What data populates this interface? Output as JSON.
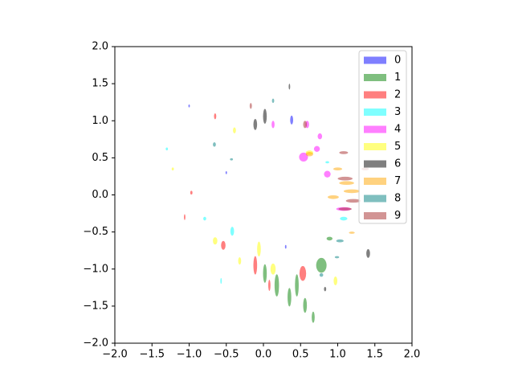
{
  "chart_data": {
    "type": "ellipse-scatter",
    "xlim": [
      -2,
      2
    ],
    "ylim": [
      -2,
      2
    ],
    "xticks": [
      {
        "value": -2,
        "label": "−2.0"
      },
      {
        "value": -1.5,
        "label": "−1.5"
      },
      {
        "value": -1,
        "label": "−1.0"
      },
      {
        "value": -0.5,
        "label": "−0.5"
      },
      {
        "value": 0,
        "label": "0.0"
      },
      {
        "value": 0.5,
        "label": "0.5"
      },
      {
        "value": 1,
        "label": "1.0"
      },
      {
        "value": 1.5,
        "label": "1.5"
      },
      {
        "value": 2,
        "label": "2.0"
      }
    ],
    "yticks": [
      {
        "value": -2,
        "label": "−2.0"
      },
      {
        "value": -1.5,
        "label": "−1.5"
      },
      {
        "value": -1,
        "label": "−1.0"
      },
      {
        "value": -0.5,
        "label": "−0.5"
      },
      {
        "value": 0,
        "label": "0.0"
      },
      {
        "value": 0.5,
        "label": "0.5"
      },
      {
        "value": 1,
        "label": "1.0"
      },
      {
        "value": 1.5,
        "label": "1.5"
      },
      {
        "value": 2,
        "label": "2.0"
      }
    ],
    "alpha": 0.5,
    "legend": "upper right",
    "series": [
      {
        "name": "0",
        "color": "blue",
        "x": [
          0.38,
          -0.5,
          -1.0,
          0.3
        ],
        "y": [
          1.01,
          0.3,
          1.2,
          -0.7
        ],
        "width": [
          0.04,
          0.02,
          0.02,
          0.02
        ],
        "height": [
          0.12,
          0.04,
          0.04,
          0.05
        ]
      },
      {
        "name": "1",
        "color": "green",
        "x": [
          0.18,
          0.35,
          0.56,
          0.78,
          0.89,
          0.02,
          0.45,
          0.67
        ],
        "y": [
          -1.22,
          -1.38,
          -1.49,
          -0.95,
          -0.59,
          -1.06,
          -1.22,
          -1.65
        ],
        "width": [
          0.06,
          0.05,
          0.05,
          0.14,
          0.08,
          0.05,
          0.05,
          0.04
        ],
        "height": [
          0.3,
          0.25,
          0.2,
          0.2,
          0.05,
          0.25,
          0.3,
          0.15
        ]
      },
      {
        "name": "2",
        "color": "red",
        "x": [
          0.53,
          -0.11,
          -0.54,
          -0.65,
          -0.97,
          0.08,
          -1.06
        ],
        "y": [
          -1.06,
          -0.95,
          -0.68,
          1.06,
          0.03,
          -1.22,
          -0.3
        ],
        "width": [
          0.09,
          0.05,
          0.06,
          0.03,
          0.03,
          0.03,
          0.02
        ],
        "height": [
          0.2,
          0.25,
          0.12,
          0.08,
          0.05,
          0.15,
          0.08
        ]
      },
      {
        "name": "3",
        "color": "cyan",
        "x": [
          -0.42,
          1.08,
          -0.79,
          -1.3,
          -0.57,
          0.86
        ],
        "y": [
          -0.49,
          -0.32,
          -0.32,
          0.62,
          -1.16,
          0.44
        ],
        "width": [
          0.05,
          0.1,
          0.04,
          0.03,
          0.02,
          0.05
        ],
        "height": [
          0.12,
          0.05,
          0.05,
          0.04,
          0.08,
          0.03
        ]
      },
      {
        "name": "4",
        "color": "magenta",
        "x": [
          0.54,
          0.72,
          0.86,
          1.08,
          0.59,
          0.13,
          0.76
        ],
        "y": [
          0.51,
          0.62,
          0.28,
          -0.19,
          0.95,
          0.95,
          0.79
        ],
        "width": [
          0.12,
          0.08,
          0.09,
          0.2,
          0.05,
          0.04,
          0.06
        ],
        "height": [
          0.12,
          0.08,
          0.09,
          0.05,
          0.1,
          0.1,
          0.08
        ]
      },
      {
        "name": "5",
        "color": "yellow",
        "x": [
          0.13,
          -0.65,
          -0.32,
          0.97,
          0.62,
          -0.39,
          -0.06,
          -1.22
        ],
        "y": [
          -1.0,
          -0.62,
          -0.89,
          -1.16,
          0.57,
          0.87,
          -0.73,
          0.35
        ],
        "width": [
          0.07,
          0.06,
          0.04,
          0.05,
          0.1,
          0.04,
          0.05,
          0.03
        ],
        "height": [
          0.15,
          0.1,
          0.1,
          0.12,
          0.06,
          0.08,
          0.2,
          0.04
        ]
      },
      {
        "name": "6",
        "color": "black",
        "x": [
          -0.11,
          0.02,
          1.41,
          0.35,
          0.83
        ],
        "y": [
          0.95,
          1.06,
          -0.79,
          1.46,
          -1.27
        ],
        "width": [
          0.05,
          0.05,
          0.05,
          0.02,
          0.03
        ],
        "height": [
          0.15,
          0.2,
          0.12,
          0.08,
          0.06
        ]
      },
      {
        "name": "7",
        "color": "orange",
        "x": [
          0.94,
          1.12,
          1.0,
          1.19,
          0.62,
          1.19
        ],
        "y": [
          -0.03,
          0.16,
          0.35,
          0.05,
          0.55,
          -0.51
        ],
        "width": [
          0.15,
          0.2,
          0.12,
          0.22,
          0.1,
          0.08
        ],
        "height": [
          0.05,
          0.05,
          0.04,
          0.05,
          0.06,
          0.03
        ]
      },
      {
        "name": "8",
        "color": "teal",
        "x": [
          1.03,
          -0.43,
          -0.66,
          0.78,
          0.13,
          0.99
        ],
        "y": [
          -0.62,
          0.48,
          0.68,
          -1.08,
          1.27,
          -0.84
        ],
        "width": [
          0.1,
          0.04,
          0.04,
          0.05,
          0.03,
          0.06
        ],
        "height": [
          0.04,
          0.03,
          0.06,
          0.05,
          0.06,
          0.03
        ]
      },
      {
        "name": "9",
        "color": "brown",
        "x": [
          1.1,
          1.08,
          1.1,
          0.56,
          1.21,
          -0.17,
          1.37
        ],
        "y": [
          0.22,
          0.57,
          -0.19,
          0.95,
          -0.08,
          1.2,
          0.35
        ],
        "width": [
          0.2,
          0.12,
          0.18,
          0.05,
          0.2,
          0.03,
          0.1
        ],
        "height": [
          0.05,
          0.04,
          0.04,
          0.1,
          0.05,
          0.08,
          0.04
        ]
      }
    ]
  }
}
